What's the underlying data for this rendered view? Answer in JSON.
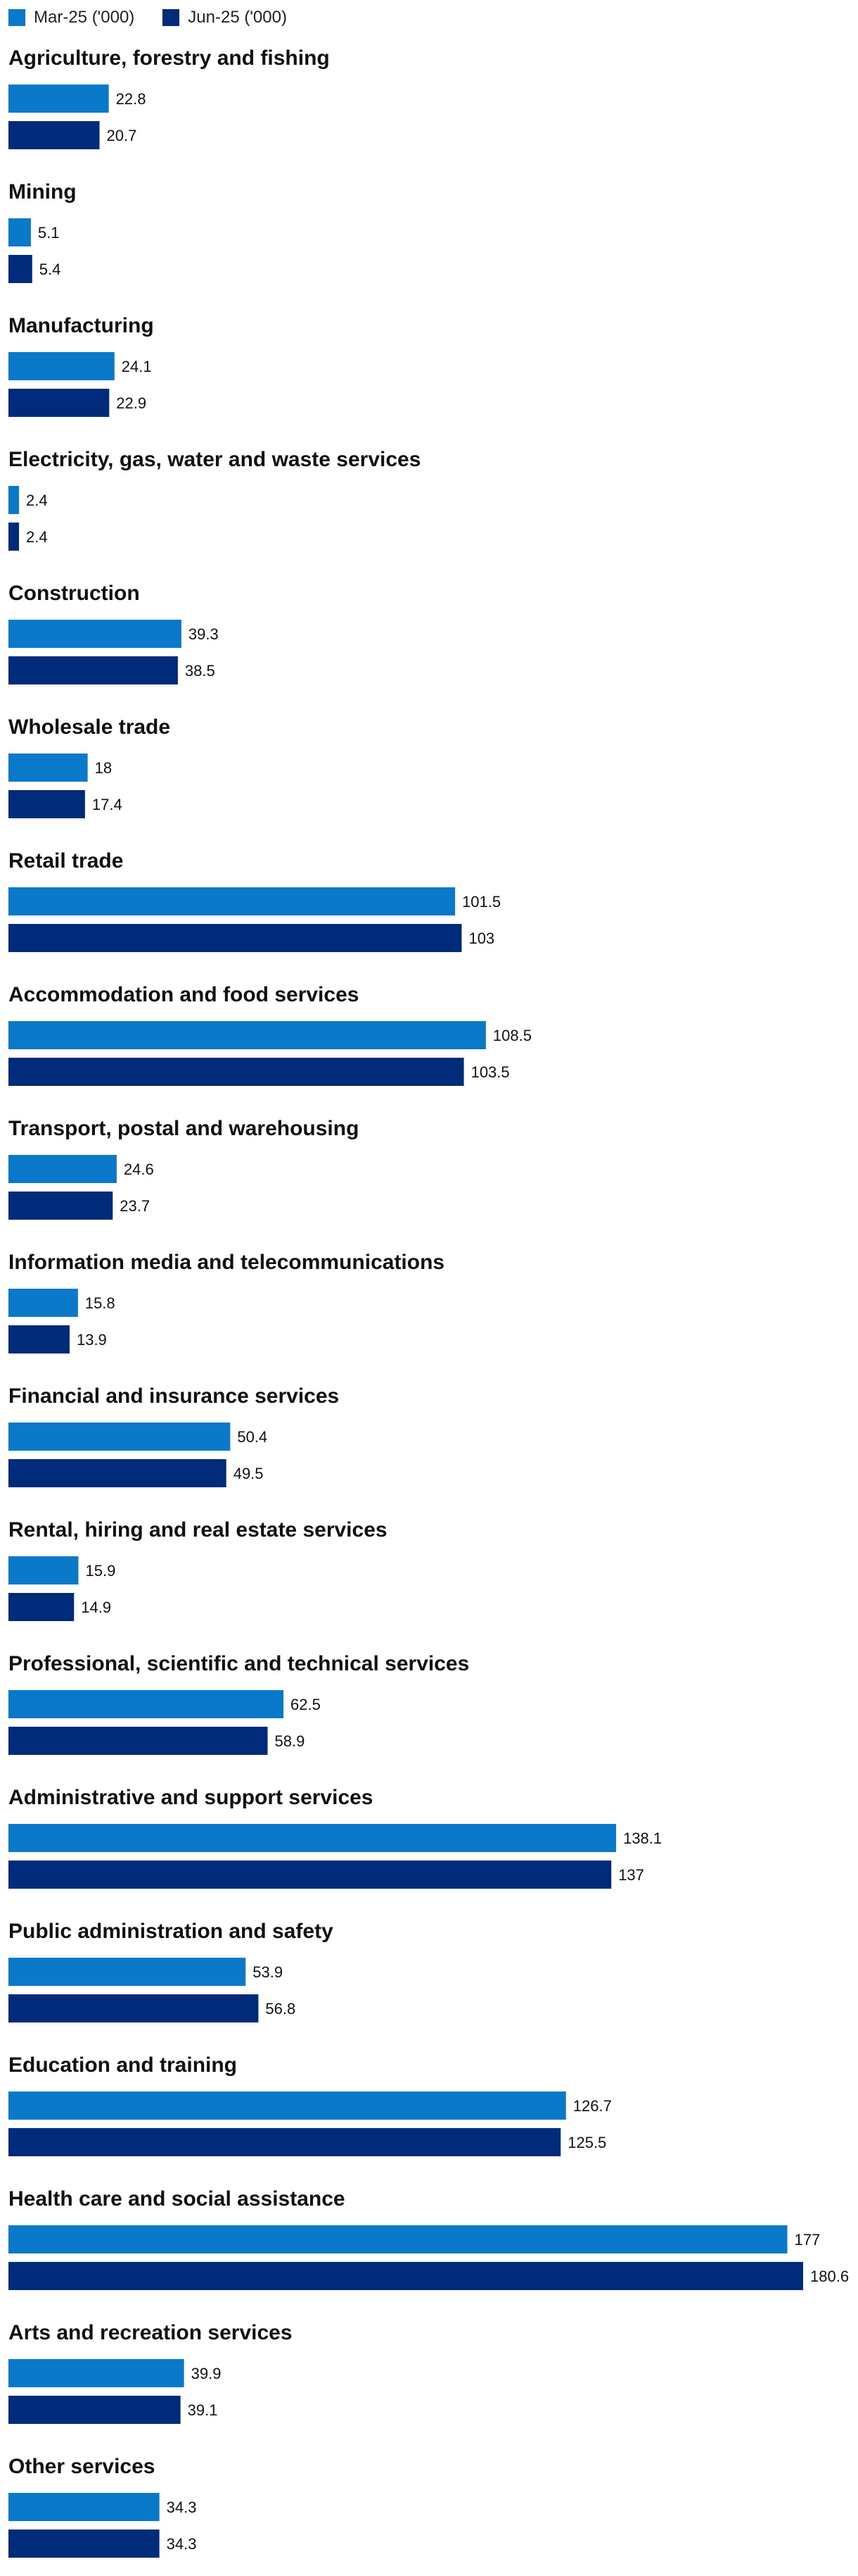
{
  "colors": {
    "series1": "#0a79c9",
    "series2": "#002a7a"
  },
  "legend": [
    {
      "name": "Mar-25 ('000)",
      "color": "#0a79c9"
    },
    {
      "name": "Jun-25 ('000)",
      "color": "#002a7a"
    }
  ],
  "chart_data": {
    "type": "bar",
    "orientation": "horizontal",
    "title": "",
    "xlabel": "",
    "ylabel": "",
    "xlim": [
      0,
      180.6
    ],
    "categories": [
      "Agriculture, forestry and fishing",
      "Mining",
      "Manufacturing",
      "Electricity, gas, water and waste services",
      "Construction",
      "Wholesale trade",
      "Retail trade",
      "Accommodation and food services",
      "Transport, postal and warehousing",
      "Information media and telecommunications",
      "Financial and insurance services",
      "Rental, hiring and real estate services",
      "Professional, scientific and technical services",
      "Administrative and support services",
      "Public administration and safety",
      "Education and training",
      "Health care and social assistance",
      "Arts and recreation services",
      "Other services"
    ],
    "series": [
      {
        "name": "Mar-25 ('000)",
        "values": [
          22.8,
          5.1,
          24.1,
          2.4,
          39.3,
          18,
          101.5,
          108.5,
          24.6,
          15.8,
          50.4,
          15.9,
          62.5,
          138.1,
          53.9,
          126.7,
          177,
          39.9,
          34.3
        ]
      },
      {
        "name": "Jun-25 ('000)",
        "values": [
          20.7,
          5.4,
          22.9,
          2.4,
          38.5,
          17.4,
          103,
          103.5,
          23.7,
          13.9,
          49.5,
          14.9,
          58.9,
          137,
          56.8,
          125.5,
          180.6,
          39.1,
          34.3
        ]
      }
    ],
    "legend_position": "top-left",
    "grid": false
  }
}
